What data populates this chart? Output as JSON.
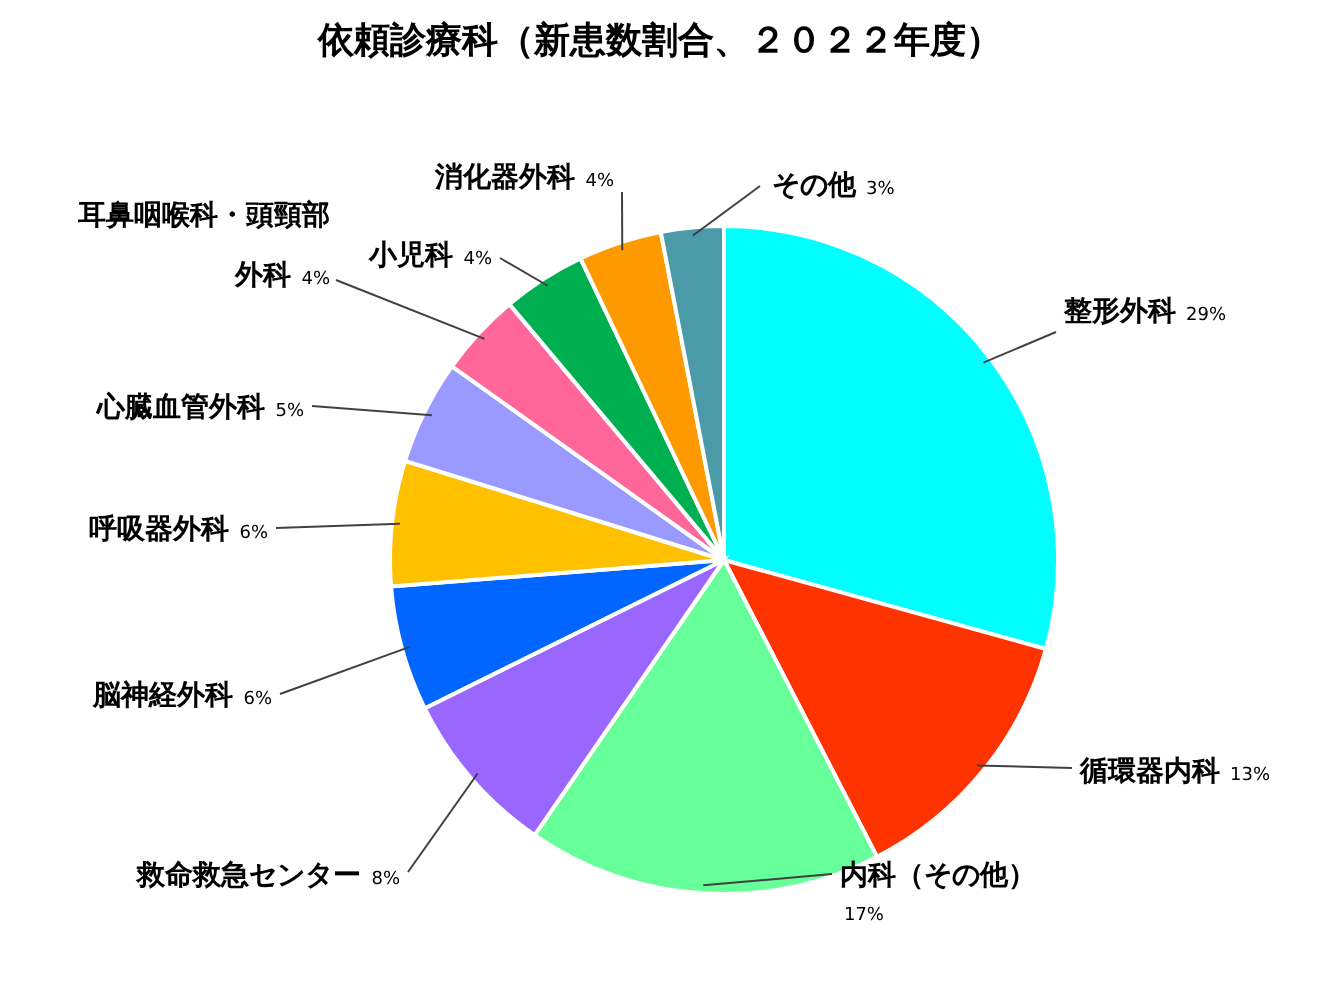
{
  "chart_data": {
    "type": "pie",
    "title": "依頼診療科（新患数割合、２０２２年度）",
    "categories": [
      "整形外科",
      "循環器内科",
      "内科（その他）",
      "救命救急センター",
      "脳神経外科",
      "呼吸器外科",
      "心臓血管外科",
      "耳鼻咽喉科・頭頸部外科",
      "小児科",
      "消化器外科",
      "その他"
    ],
    "values": [
      29,
      13,
      17,
      8,
      6,
      6,
      5,
      4,
      4,
      4,
      3
    ],
    "value_labels": [
      "29%",
      "13%",
      "17%",
      "8%",
      "6%",
      "6%",
      "5%",
      "4%",
      "4%",
      "4%",
      "3%"
    ],
    "colors": [
      "#00ffff",
      "#ff3300",
      "#66ff99",
      "#9966ff",
      "#0066ff",
      "#ffc000",
      "#9999ff",
      "#ff6699",
      "#00b050",
      "#ff9900",
      "#4a9aa8"
    ]
  }
}
